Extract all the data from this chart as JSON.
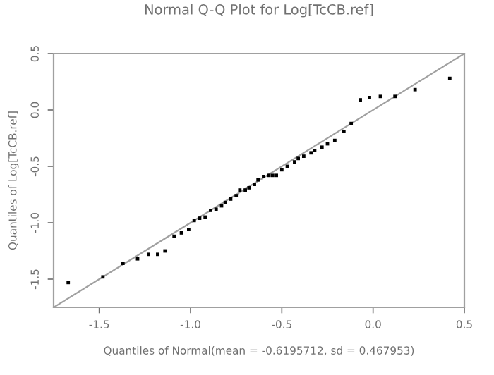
{
  "chart_data": {
    "type": "scatter",
    "title": "Normal Q-Q Plot for Log[TcCB.ref]",
    "xlabel": "Quantiles of Normal(mean = -0.6195712, sd = 0.467953)",
    "ylabel": "Quantiles of Log[TcCB.ref]",
    "xlim": [
      -1.75,
      0.5
    ],
    "ylim": [
      -1.75,
      0.5
    ],
    "xticks": [
      -1.5,
      {
        "value": -1.0,
        "label": "-1.0"
      },
      -0.5,
      {
        "value": 0.0,
        "label": "0.0"
      },
      0.5
    ],
    "yticks": [
      -1.5,
      {
        "value": -1.0,
        "label": "-1.0"
      },
      -0.5,
      {
        "value": 0.0,
        "label": "0.0"
      },
      0.5
    ],
    "grid": false,
    "series": [
      {
        "marker": "square",
        "color": "#000000",
        "x": [
          -1.67,
          -1.48,
          -1.37,
          -1.29,
          -1.23,
          -1.18,
          -1.14,
          -1.09,
          -1.05,
          -1.01,
          -0.98,
          -0.95,
          -0.92,
          -0.89,
          -0.86,
          -0.83,
          -0.81,
          -0.78,
          -0.75,
          -0.73,
          -0.7,
          -0.68,
          -0.65,
          -0.63,
          -0.6,
          -0.57,
          -0.55,
          -0.53,
          -0.5,
          -0.47,
          -0.43,
          -0.41,
          -0.38,
          -0.34,
          -0.32,
          -0.28,
          -0.25,
          -0.21,
          -0.16,
          -0.12,
          -0.07,
          -0.02,
          0.04,
          0.12,
          0.23,
          0.42
        ],
        "values": [
          -1.53,
          -1.48,
          -1.36,
          -1.32,
          -1.28,
          -1.28,
          -1.25,
          -1.12,
          -1.09,
          -1.06,
          -0.98,
          -0.96,
          -0.95,
          -0.89,
          -0.88,
          -0.85,
          -0.82,
          -0.79,
          -0.76,
          -0.71,
          -0.71,
          -0.69,
          -0.66,
          -0.62,
          -0.59,
          -0.58,
          -0.58,
          -0.58,
          -0.53,
          -0.5,
          -0.46,
          -0.43,
          -0.41,
          -0.38,
          -0.36,
          -0.33,
          -0.3,
          -0.27,
          -0.19,
          -0.12,
          0.09,
          0.11,
          0.12,
          0.12,
          0.18,
          0.28
        ]
      },
      {
        "type": "line",
        "marker": "none",
        "color": "#a0a0a0",
        "x": [
          -1.75,
          0.5
        ],
        "values": [
          -1.75,
          0.5
        ]
      }
    ]
  }
}
